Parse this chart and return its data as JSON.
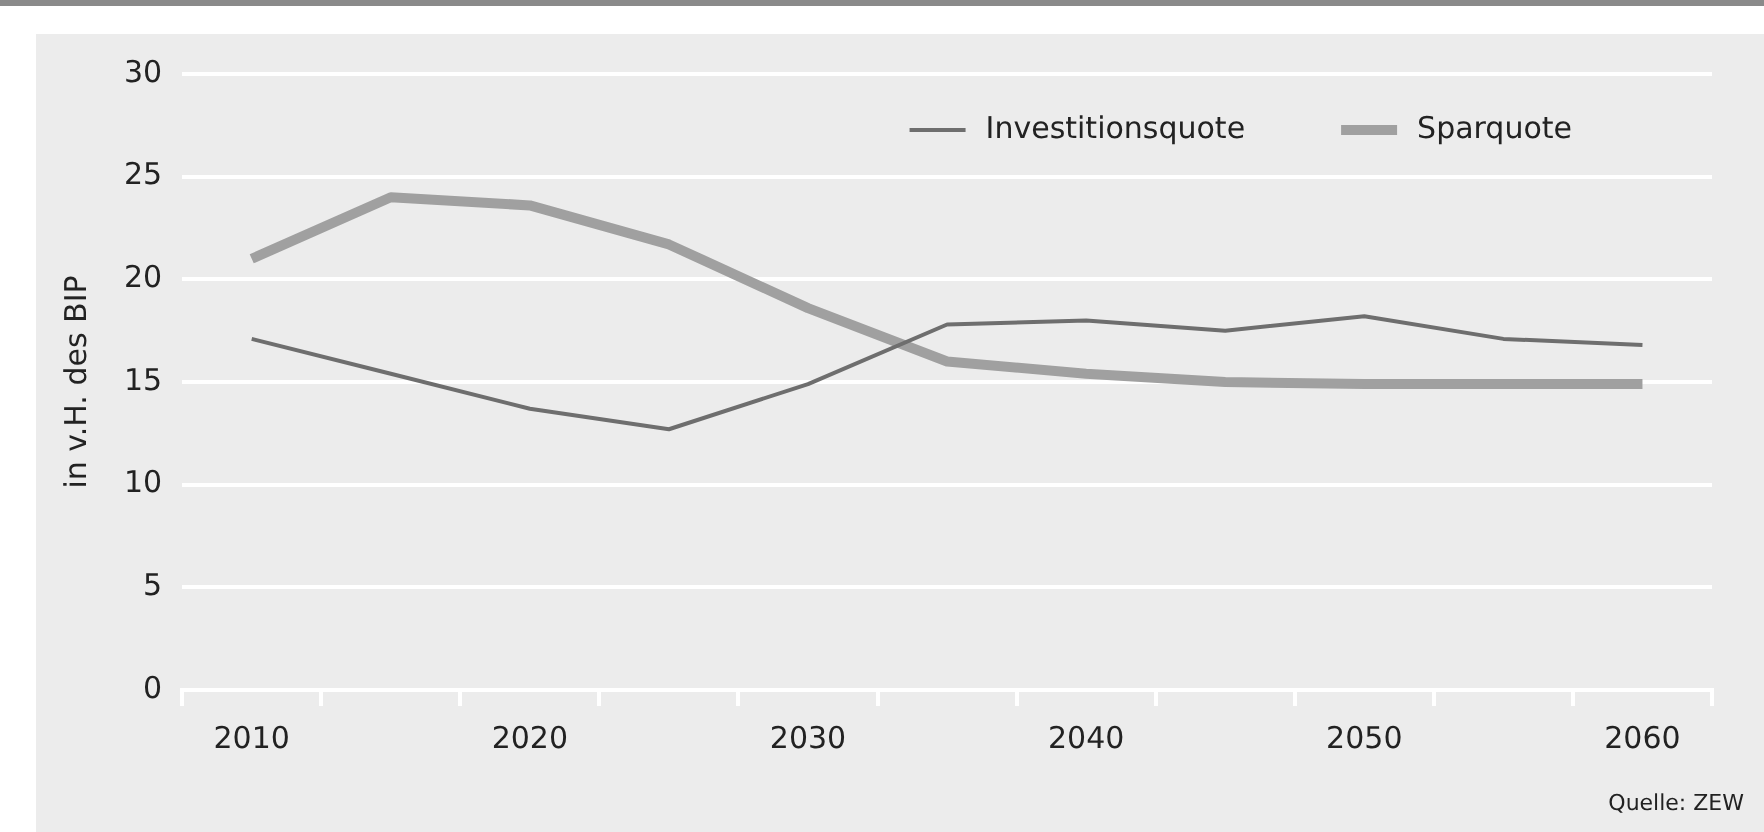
{
  "chart_data": {
    "type": "line",
    "ylabel": "in v.H. des BIP",
    "categories": [
      "2010",
      null,
      "2020",
      null,
      "2030",
      null,
      "2040",
      null,
      "2050",
      null,
      "2060"
    ],
    "series": [
      {
        "name": "Investitionsquote",
        "color": "#6e6e6e",
        "values": [
          17.1,
          15.4,
          13.7,
          12.7,
          14.9,
          17.8,
          18.0,
          17.5,
          18.2,
          17.1,
          16.8
        ]
      },
      {
        "name": "Sparquote",
        "color": "#a0a0a0",
        "values": [
          21.0,
          24.0,
          23.6,
          21.7,
          18.6,
          16.0,
          15.4,
          15.0,
          14.9,
          14.9,
          14.9
        ]
      }
    ],
    "ylim": [
      0,
      30
    ],
    "yticks": [
      0,
      5,
      10,
      15,
      20,
      25,
      30
    ],
    "grid": "y",
    "legend": "top right",
    "marker": "none",
    "line_style": "solid",
    "annotations": [
      "Quelle: ZEW"
    ]
  }
}
